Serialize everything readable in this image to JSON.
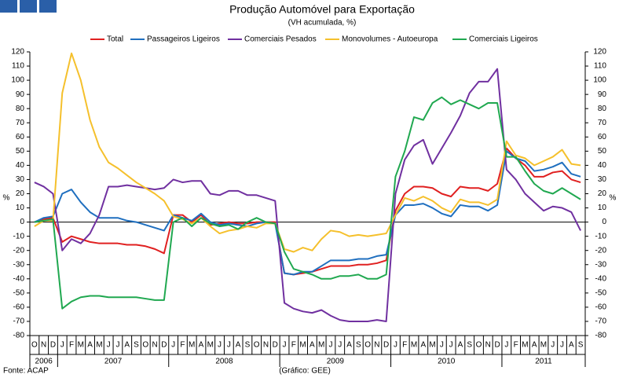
{
  "chart_data": {
    "type": "line",
    "title": "Produção Automóvel para Exportação",
    "subtitle": "(VH acumulada, %)",
    "ylabel": "%",
    "y2label": "%",
    "source": "Fonte: ACAP",
    "credit": "(Gráfico: GEE)",
    "categories": [
      "O",
      "N",
      "D",
      "J",
      "F",
      "M",
      "A",
      "M",
      "J",
      "J",
      "A",
      "S",
      "O",
      "N",
      "D",
      "J",
      "F",
      "M",
      "A",
      "M",
      "J",
      "J",
      "A",
      "S",
      "O",
      "N",
      "D",
      "J",
      "F",
      "M",
      "A",
      "M",
      "J",
      "J",
      "A",
      "S",
      "O",
      "N",
      "D",
      "J",
      "F",
      "M",
      "A",
      "M",
      "J",
      "J",
      "A",
      "S",
      "O",
      "N",
      "D",
      "J",
      "F",
      "M",
      "A",
      "M",
      "J",
      "J",
      "A",
      "S"
    ],
    "years": [
      "2006",
      "2007",
      "2008",
      "2009",
      "2010",
      "2011"
    ],
    "ylim": [
      -80,
      120
    ],
    "yticks": [
      -80,
      -70,
      -60,
      -50,
      -40,
      -30,
      -20,
      -10,
      0,
      10,
      20,
      30,
      40,
      50,
      60,
      70,
      80,
      90,
      100,
      110,
      120
    ],
    "y2lim": [
      -80,
      120
    ],
    "y2ticks": [
      -80,
      -70,
      -60,
      -50,
      -40,
      -30,
      -20,
      -10,
      0,
      10,
      20,
      30,
      40,
      50,
      60,
      70,
      80,
      90,
      100,
      110,
      120
    ],
    "grid": false,
    "legend": "top",
    "series": [
      {
        "name": "Total",
        "color": "#e02020",
        "values": [
          0,
          2,
          3,
          -14,
          -10,
          -12,
          -14,
          -15,
          -15,
          -15,
          -16,
          -16,
          -17,
          -19,
          -22,
          5,
          5,
          0,
          5,
          -2,
          -1,
          0,
          -1,
          -1,
          0,
          0,
          0,
          -36,
          -37,
          -36,
          -35,
          -33,
          -31,
          -31,
          -31,
          -30,
          -30,
          -29,
          -27,
          8,
          20,
          25,
          25,
          24,
          20,
          18,
          25,
          24,
          24,
          22,
          27,
          52,
          45,
          40,
          32,
          32,
          35,
          36,
          30,
          28
        ]
      },
      {
        "name": "Passageiros Ligeiros",
        "color": "#1f6fbf",
        "values": [
          0,
          3,
          4,
          20,
          23,
          14,
          7,
          3,
          3,
          3,
          1,
          0,
          -2,
          -4,
          -6,
          5,
          3,
          1,
          6,
          0,
          -2,
          -1,
          -2,
          -3,
          -1,
          0,
          -1,
          -36,
          -37,
          -35,
          -35,
          -31,
          -27,
          -27,
          -27,
          -26,
          -26,
          -24,
          -23,
          5,
          12,
          12,
          13,
          10,
          6,
          4,
          12,
          11,
          11,
          8,
          12,
          50,
          45,
          43,
          36,
          37,
          39,
          42,
          34,
          32
        ]
      },
      {
        "name": "Comerciais Pesados",
        "color": "#7030a0",
        "values": [
          28,
          25,
          20,
          -20,
          -12,
          -15,
          -8,
          5,
          25,
          25,
          26,
          25,
          24,
          23,
          24,
          30,
          28,
          29,
          29,
          20,
          19,
          22,
          22,
          19,
          19,
          17,
          15,
          -57,
          -61,
          -63,
          -64,
          -62,
          -66,
          -69,
          -70,
          -70,
          -70,
          -69,
          -70,
          20,
          44,
          54,
          58,
          41,
          52,
          63,
          75,
          91,
          99,
          99,
          108,
          37,
          30,
          20,
          14,
          8,
          11,
          10,
          7,
          -6
        ]
      },
      {
        "name": "Monovolumes - Autoeuropa",
        "color": "#f5c02c",
        "values": [
          -3,
          1,
          1,
          91,
          119,
          100,
          72,
          53,
          42,
          38,
          33,
          28,
          24,
          20,
          15,
          4,
          2,
          -1,
          3,
          -3,
          -8,
          -6,
          -5,
          -3,
          -4,
          -1,
          -1,
          -19,
          -21,
          -18,
          -20,
          -12,
          -6,
          -7,
          -10,
          -9,
          -10,
          -9,
          -8,
          5,
          17,
          15,
          18,
          15,
          10,
          7,
          16,
          14,
          14,
          12,
          16,
          57,
          47,
          45,
          40,
          43,
          46,
          51,
          41,
          40
        ]
      },
      {
        "name": "Comerciais Ligeiros",
        "color": "#20a850",
        "values": [
          0,
          1,
          2,
          -61,
          -56,
          -53,
          -52,
          -52,
          -53,
          -53,
          -53,
          -53,
          -54,
          -55,
          -55,
          0,
          3,
          -3,
          3,
          -1,
          -3,
          -2,
          -5,
          0,
          3,
          0,
          -1,
          -21,
          -33,
          -35,
          -37,
          -40,
          -40,
          -38,
          -38,
          -37,
          -40,
          -40,
          -37,
          32,
          50,
          74,
          72,
          84,
          88,
          83,
          86,
          83,
          80,
          84,
          84,
          46,
          46,
          36,
          27,
          22,
          20,
          24,
          20,
          16
        ]
      }
    ]
  }
}
